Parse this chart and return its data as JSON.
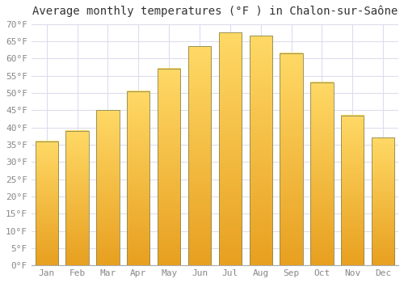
{
  "title": "Average monthly temperatures (°F ) in Chalon-sur-Saône",
  "months": [
    "Jan",
    "Feb",
    "Mar",
    "Apr",
    "May",
    "Jun",
    "Jul",
    "Aug",
    "Sep",
    "Oct",
    "Nov",
    "Dec"
  ],
  "values": [
    36,
    39,
    45,
    50.5,
    57,
    63.5,
    67.5,
    66.5,
    61.5,
    53,
    43.5,
    37
  ],
  "bar_color_top": "#FFD966",
  "bar_color_bottom": "#E8A020",
  "bar_edge_color": "#888855",
  "background_color": "#FFFFFF",
  "grid_color": "#DDDDEE",
  "ylim": [
    0,
    70
  ],
  "yticks": [
    0,
    5,
    10,
    15,
    20,
    25,
    30,
    35,
    40,
    45,
    50,
    55,
    60,
    65,
    70
  ],
  "title_fontsize": 10,
  "tick_fontsize": 8,
  "title_color": "#333333",
  "tick_color": "#888888",
  "bar_width": 0.75
}
